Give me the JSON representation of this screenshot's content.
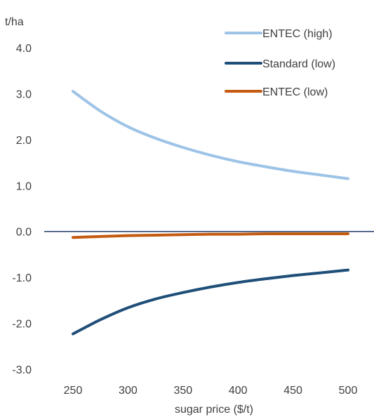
{
  "chart_data": {
    "type": "line",
    "unit_label": "t/ha",
    "xlabel": "sugar price ($/t)",
    "x": [
      250,
      275,
      300,
      325,
      350,
      375,
      400,
      425,
      450,
      475,
      500
    ],
    "x_ticks": [
      250,
      300,
      350,
      400,
      450,
      500
    ],
    "x_tick_labels": [
      "250",
      "300",
      "350",
      "400",
      "450",
      "500"
    ],
    "ylim": [
      -3.0,
      4.0
    ],
    "y_ticks": [
      4.0,
      3.0,
      2.0,
      1.0,
      0.0,
      -1.0,
      -2.0,
      -3.0
    ],
    "y_tick_labels": [
      "4.0",
      "3.0",
      "2.0",
      "1.0",
      "0.0",
      "-1.0",
      "-2.0",
      "-3.0"
    ],
    "grid": false,
    "zero_line": true,
    "legend_position": "top-right",
    "series": [
      {
        "name": "ENTEC (high)",
        "color": "#9dc3e6",
        "values": [
          3.05,
          2.62,
          2.28,
          2.03,
          1.83,
          1.66,
          1.52,
          1.41,
          1.31,
          1.23,
          1.15
        ]
      },
      {
        "name": "Standard (low)",
        "color": "#1f4e79",
        "values": [
          -2.23,
          -1.92,
          -1.66,
          -1.47,
          -1.33,
          -1.21,
          -1.11,
          -1.03,
          -0.96,
          -0.9,
          -0.84
        ]
      },
      {
        "name": "ENTEC (low)",
        "color": "#c55a11",
        "values": [
          -0.13,
          -0.11,
          -0.09,
          -0.08,
          -0.07,
          -0.06,
          -0.06,
          -0.05,
          -0.05,
          -0.05,
          -0.05
        ]
      }
    ]
  }
}
